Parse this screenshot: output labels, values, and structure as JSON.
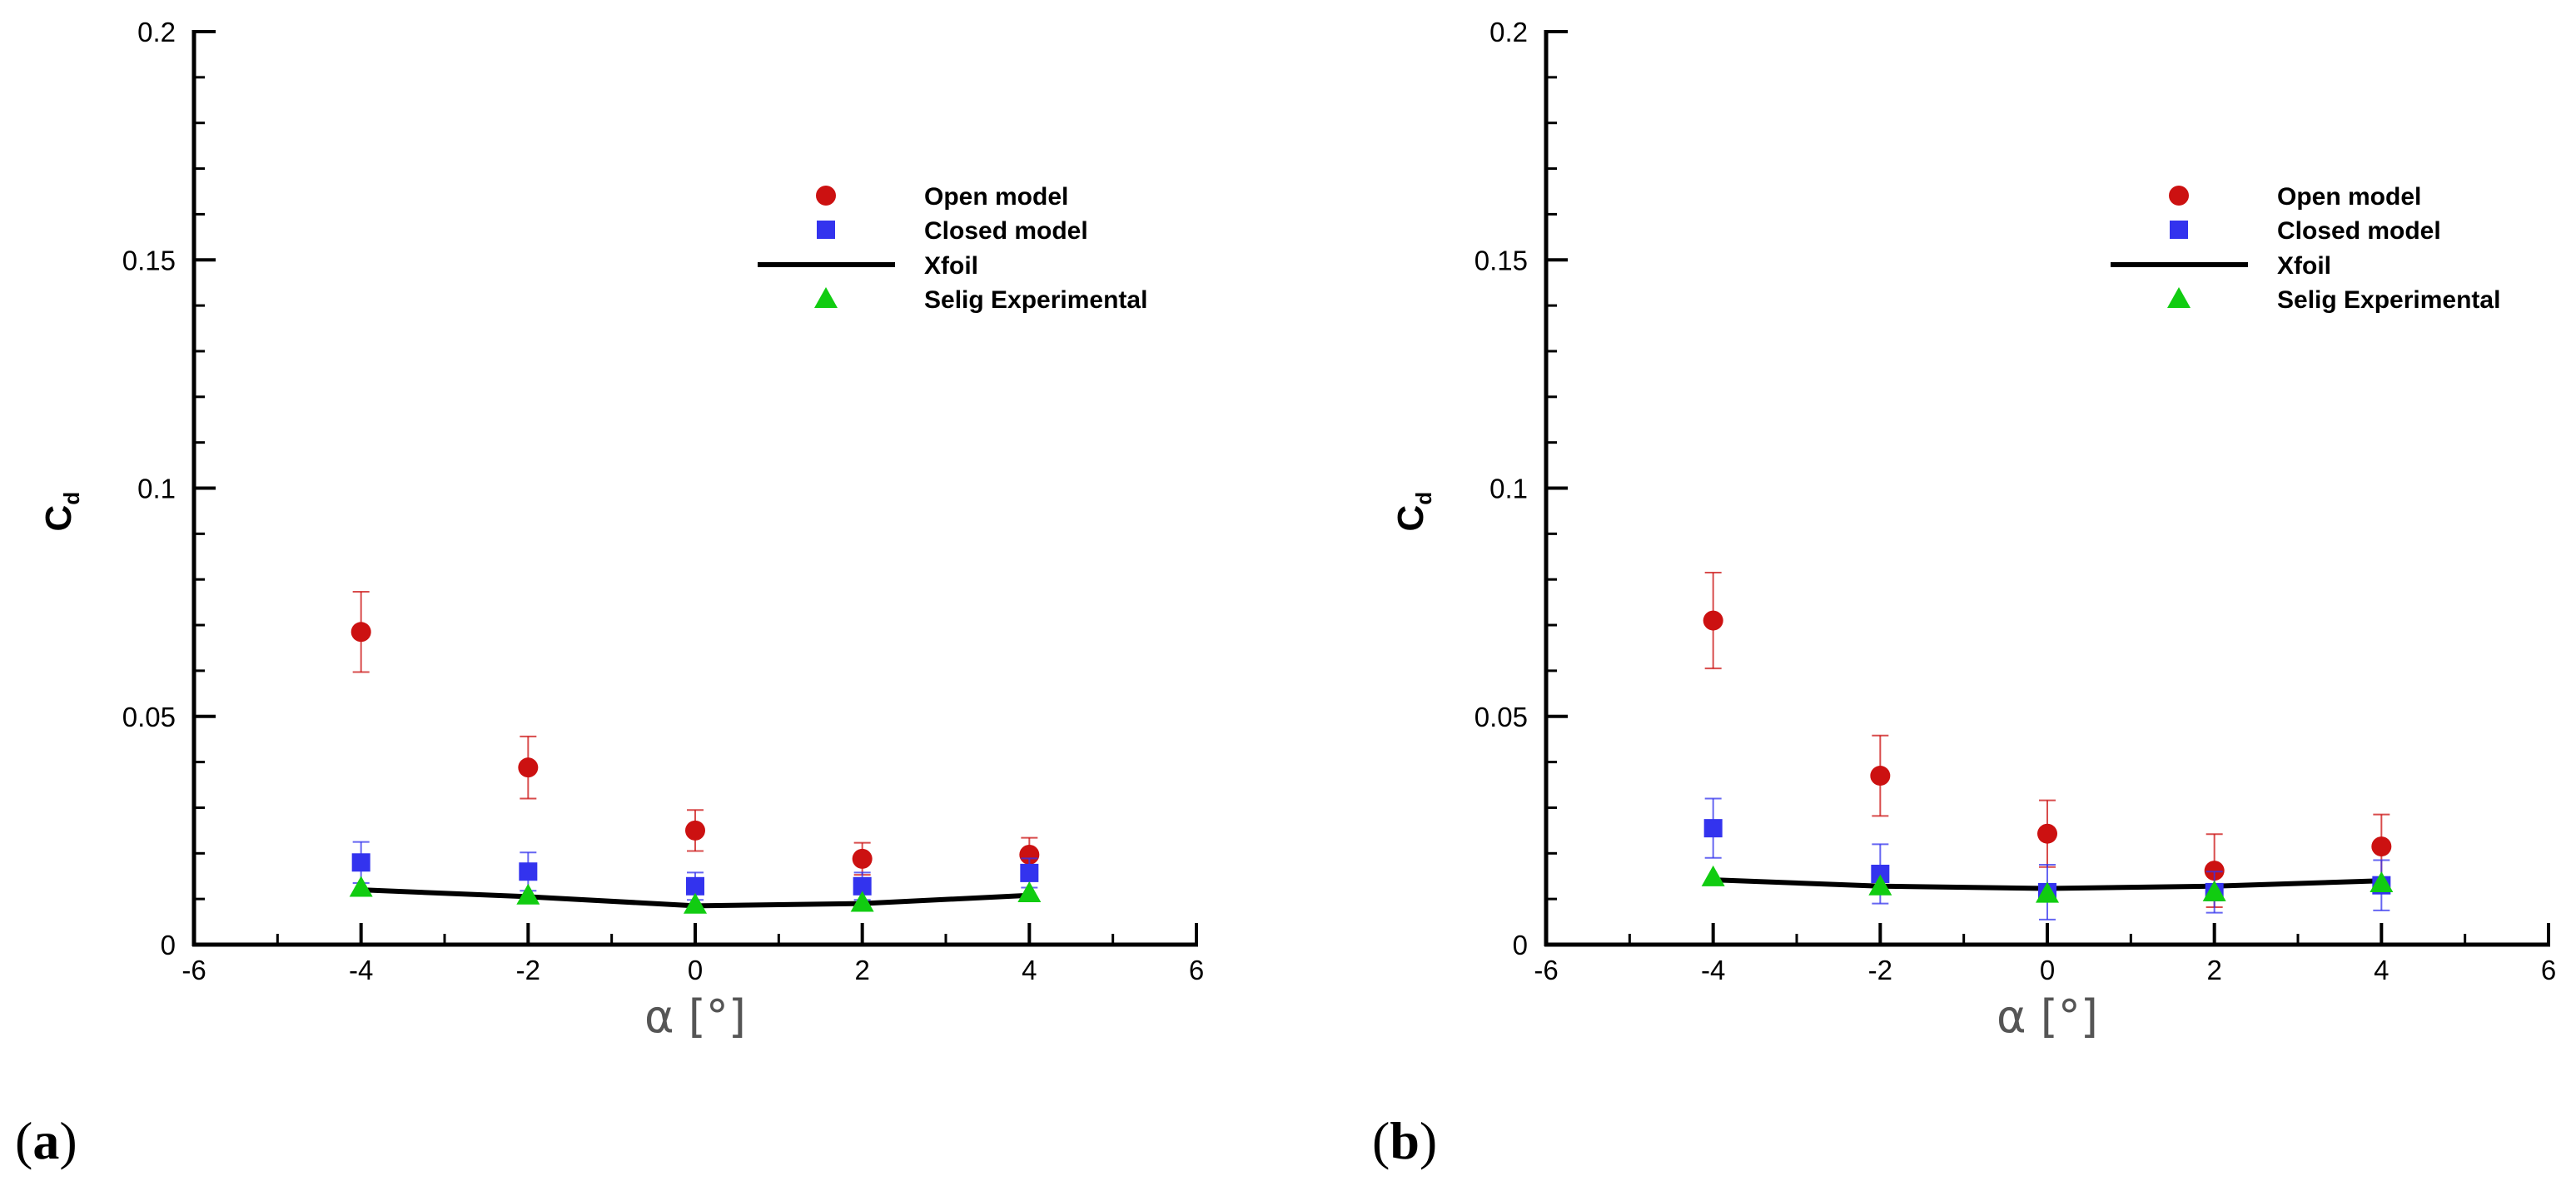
{
  "colors": {
    "open": "#cc1111",
    "closed": "#3333ee",
    "xfoil": "#000000",
    "selig": "#11cc11",
    "axis": "#000000"
  },
  "legend": {
    "open": "Open model",
    "closed": "Closed model",
    "xfoil": "Xfoil",
    "selig": "Selig Experimental"
  },
  "axis_labels": {
    "ylabel_main": "C",
    "ylabel_sub": "d",
    "xlabel": "α [°]"
  },
  "chart_data": [
    {
      "type": "scatter",
      "panel_label": "a",
      "xlabel": "α [°]",
      "ylabel": "Cd",
      "xlim": [
        -6,
        6
      ],
      "ylim": [
        0,
        0.2
      ],
      "xticks": [
        "-6",
        "-4",
        "-2",
        "0",
        "2",
        "4",
        "6"
      ],
      "yticks": [
        "0",
        "0.05",
        "0.1",
        "0.15",
        "0.2"
      ],
      "series": [
        {
          "name": "Open model",
          "marker": "circle",
          "x": [
            -4,
            -2,
            0,
            2,
            4
          ],
          "y": [
            0.0685,
            0.0388,
            0.025,
            0.0188,
            0.0197
          ],
          "err": [
            0.0088,
            0.0068,
            0.0045,
            0.0035,
            0.0037
          ]
        },
        {
          "name": "Closed model",
          "marker": "square",
          "x": [
            -4,
            -2,
            0,
            2,
            4
          ],
          "y": [
            0.018,
            0.016,
            0.0128,
            0.0128,
            0.0157
          ],
          "err": [
            0.0045,
            0.0042,
            0.003,
            0.003,
            0.0032
          ]
        },
        {
          "name": "Xfoil",
          "marker": "line",
          "x": [
            -4,
            -2,
            0,
            2,
            4
          ],
          "y": [
            0.012,
            0.0105,
            0.0085,
            0.009,
            0.0108
          ]
        },
        {
          "name": "Selig Experimental",
          "marker": "triangle",
          "x": [
            -4,
            -2,
            0,
            2,
            4
          ],
          "y": [
            0.0125,
            0.0108,
            0.0088,
            0.0092,
            0.0113
          ]
        }
      ]
    },
    {
      "type": "scatter",
      "panel_label": "b",
      "xlabel": "α [°]",
      "ylabel": "Cd",
      "xlim": [
        -6,
        6
      ],
      "ylim": [
        0,
        0.2
      ],
      "xticks": [
        "-6",
        "-4",
        "-2",
        "0",
        "2",
        "4",
        "6"
      ],
      "yticks": [
        "0",
        "0.05",
        "0.1",
        "0.15",
        "0.2"
      ],
      "series": [
        {
          "name": "Open model",
          "marker": "circle",
          "x": [
            -4,
            -2,
            0,
            2,
            4
          ],
          "y": [
            0.071,
            0.037,
            0.0243,
            0.0162,
            0.0215
          ],
          "err": [
            0.0105,
            0.0088,
            0.0073,
            0.008,
            0.007
          ]
        },
        {
          "name": "Closed model",
          "marker": "square",
          "x": [
            -4,
            -2,
            0,
            2,
            4
          ],
          "y": [
            0.0255,
            0.0155,
            0.0115,
            0.0115,
            0.013
          ],
          "err": [
            0.0065,
            0.0065,
            0.006,
            0.0045,
            0.0055
          ]
        },
        {
          "name": "Xfoil",
          "marker": "line",
          "x": [
            -4,
            -2,
            0,
            2,
            4
          ],
          "y": [
            0.0142,
            0.0128,
            0.0123,
            0.0128,
            0.014
          ]
        },
        {
          "name": "Selig Experimental",
          "marker": "triangle",
          "x": [
            -4,
            -2,
            0,
            2,
            4
          ],
          "y": [
            0.0148,
            0.0128,
            0.0112,
            0.0115,
            0.0135
          ]
        }
      ]
    }
  ]
}
